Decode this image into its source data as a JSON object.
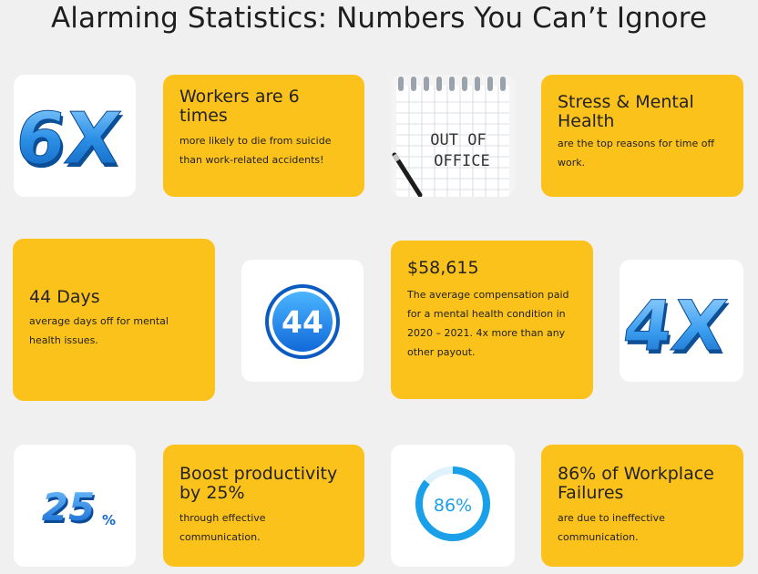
{
  "title": "Alarming Statistics: Numbers You Can’t Ignore",
  "cards": {
    "workers": {
      "heading": "Workers are 6 times",
      "body": "more likely to die from suicide than work-related accidents!"
    },
    "stress": {
      "heading": "Stress & Mental Health",
      "body": "are the top reasons for time off work."
    },
    "days": {
      "heading": "44 Days",
      "body": "average days off for mental health issues."
    },
    "comp": {
      "heading": "$58,615",
      "body": "The average compensation paid for a mental health condition in 2020 – 2021. 4x more than any other payout."
    },
    "boost": {
      "heading": "Boost productivity by 25%",
      "body": "through effective communication."
    },
    "failures": {
      "heading": "86% of Workplace Failures",
      "body": "are due to ineffective communication."
    }
  },
  "images": {
    "six_x": {
      "icon": "six-x-3d-icon",
      "text": "6X"
    },
    "office": {
      "icon": "out-of-office-notebook-icon",
      "line1": "OUT OF",
      "line2": "OFFICE"
    },
    "forty_four": {
      "icon": "44-badge-icon",
      "text": "44"
    },
    "four_x": {
      "icon": "four-x-3d-icon",
      "text": "4X"
    },
    "twenty_five": {
      "icon": "25-percent-icon",
      "text": "25",
      "suffix": "%"
    },
    "eighty_six": {
      "icon": "86-percent-ring-icon",
      "text": "86%",
      "percent": 86
    }
  },
  "colors": {
    "card_yellow": "#fcc21c",
    "icon_blue": "#2b8fe6",
    "ring_blue": "#1aa0e8",
    "background": "#f0f0f0"
  }
}
